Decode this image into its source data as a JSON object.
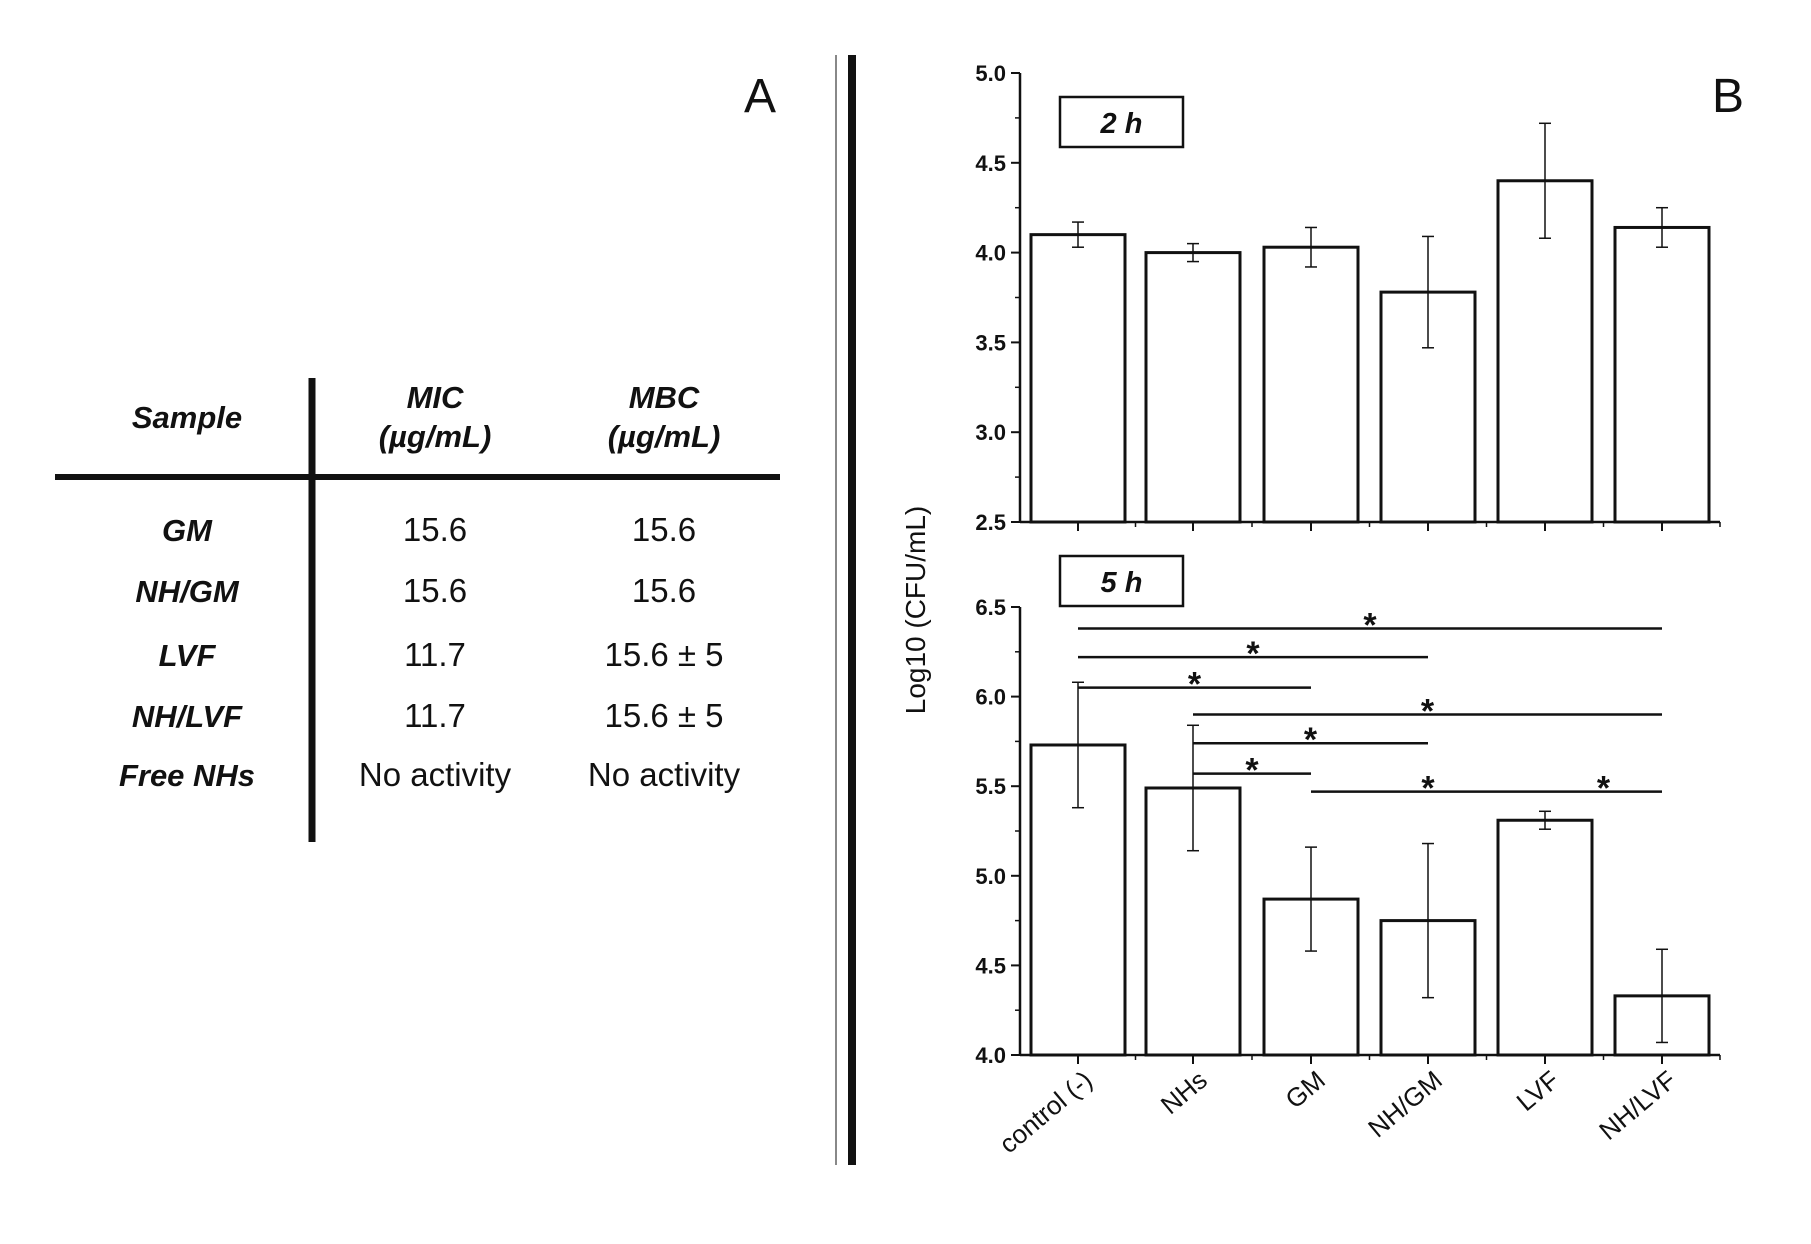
{
  "panel_a": {
    "letter": "A",
    "headers": {
      "sample": "Sample",
      "mic_line1": "MIC",
      "mic_line2": "(µg/mL)",
      "mbc_line1": "MBC",
      "mbc_line2": "(µg/mL)"
    },
    "rows": [
      {
        "sample": "GM",
        "mic": "15.6",
        "mbc": "15.6"
      },
      {
        "sample": "NH/GM",
        "mic": "15.6",
        "mbc": "15.6"
      },
      {
        "sample": "LVF",
        "mic": "11.7",
        "mbc": "15.6 ± 5"
      },
      {
        "sample": "NH/LVF",
        "mic": "11.7",
        "mbc": "15.6 ± 5"
      },
      {
        "sample": "Free NHs",
        "mic": "No activity",
        "mbc": "No activity"
      }
    ]
  },
  "panel_b": {
    "letter": "B",
    "ylabel": "Log10 (CFU/mL)"
  },
  "chart_data": [
    {
      "type": "bar",
      "label": "2 h",
      "categories": [
        "control (-)",
        "NHs",
        "GM",
        "NH/GM",
        "LVF",
        "NH/LVF"
      ],
      "values": [
        4.1,
        4.0,
        4.03,
        3.78,
        4.4,
        4.14
      ],
      "errors": [
        0.07,
        0.05,
        0.11,
        0.31,
        0.32,
        0.11
      ],
      "ylim": [
        2.5,
        5.0
      ],
      "yticks": [
        "2.5",
        "3.0",
        "3.5",
        "4.0",
        "4.5",
        "5.0"
      ],
      "ytick_values": [
        2.5,
        3.0,
        3.5,
        4.0,
        4.5,
        5.0
      ],
      "ylabel": "Log10 (CFU/mL)",
      "significance": []
    },
    {
      "type": "bar",
      "label": "5 h",
      "categories": [
        "control (-)",
        "NHs",
        "GM",
        "NH/GM",
        "LVF",
        "NH/LVF"
      ],
      "values": [
        5.73,
        5.49,
        4.87,
        4.75,
        5.31,
        4.33
      ],
      "errors": [
        0.35,
        0.35,
        0.29,
        0.43,
        0.05,
        0.26
      ],
      "ylim": [
        4.0,
        6.5
      ],
      "yticks": [
        "4.0",
        "4.5",
        "5.0",
        "5.5",
        "6.0",
        "6.5"
      ],
      "ytick_values": [
        4.0,
        4.5,
        5.0,
        5.5,
        6.0,
        6.5
      ],
      "xlabel": "",
      "ylabel": "Log10 (CFU/mL)",
      "significance": [
        {
          "from": 0,
          "to": 5,
          "level": 6.38,
          "label": "*"
        },
        {
          "from": 0,
          "to": 3,
          "level": 6.22,
          "label": "*"
        },
        {
          "from": 0,
          "to": 2,
          "level": 6.05,
          "label": "*"
        },
        {
          "from": 1,
          "to": 5,
          "level": 5.9,
          "label": "*"
        },
        {
          "from": 1,
          "to": 3,
          "level": 5.74,
          "label": "*"
        },
        {
          "from": 1,
          "to": 2,
          "level": 5.57,
          "label": "*"
        },
        {
          "from": 2,
          "to": 4,
          "level": 5.47,
          "label": "*"
        },
        {
          "from": 4,
          "to": 5,
          "level": 5.47,
          "label": "*"
        }
      ]
    }
  ]
}
